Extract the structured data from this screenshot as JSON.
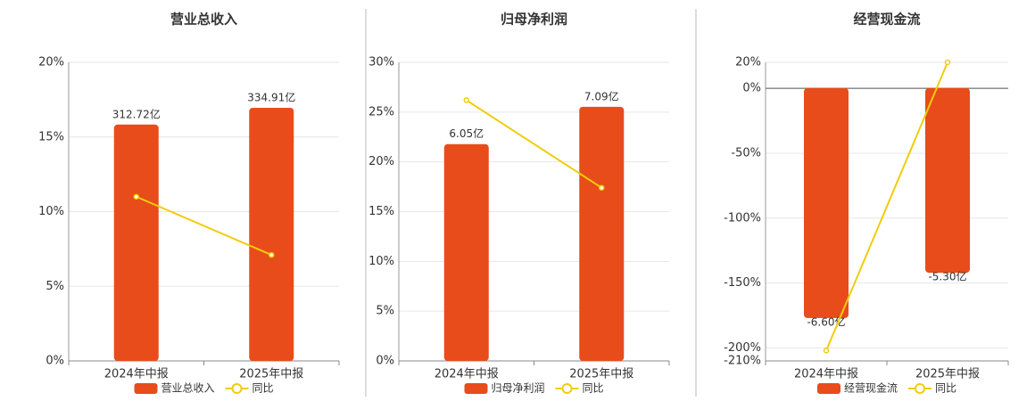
{
  "chart_data": [
    {
      "type": "bar",
      "title": "营业总收入",
      "categories": [
        "2024年中报",
        "2025年中报"
      ],
      "series": [
        {
          "name": "营业总收入",
          "color": "#e84c1a",
          "axis": "y2",
          "values": [
            312.72,
            334.91
          ],
          "value_labels": [
            "312.72亿",
            "334.91亿"
          ]
        },
        {
          "name": "同比",
          "type": "line",
          "color": "#f2cc0c",
          "values": [
            11.0,
            7.1
          ]
        }
      ],
      "ylim": [
        0,
        20
      ],
      "yticks": [
        {
          "value": 0,
          "label": "0%"
        },
        {
          "value": 5,
          "label": "5%"
        },
        {
          "value": 10,
          "label": "10%"
        },
        {
          "value": 15,
          "label": "15%"
        },
        {
          "value": 20,
          "label": "20%"
        }
      ],
      "y2lim": [
        0,
        395
      ],
      "grid": true,
      "legend": "bottom"
    },
    {
      "type": "bar",
      "title": "归母净利润",
      "categories": [
        "2024年中报",
        "2025年中报"
      ],
      "series": [
        {
          "name": "归母净利润",
          "color": "#e84c1a",
          "axis": "y2",
          "values": [
            6.05,
            7.09
          ],
          "value_labels": [
            "6.05亿",
            "7.09亿"
          ]
        },
        {
          "name": "同比",
          "type": "line",
          "color": "#f2cc0c",
          "values": [
            26.2,
            17.4
          ]
        }
      ],
      "ylim": [
        0,
        30
      ],
      "yticks": [
        {
          "value": 0,
          "label": "0%"
        },
        {
          "value": 5,
          "label": "5%"
        },
        {
          "value": 10,
          "label": "10%"
        },
        {
          "value": 15,
          "label": "15%"
        },
        {
          "value": 20,
          "label": "20%"
        },
        {
          "value": 25,
          "label": "25%"
        },
        {
          "value": 30,
          "label": "30%"
        }
      ],
      "y2lim": [
        0,
        8.33
      ],
      "grid": true,
      "legend": "bottom"
    },
    {
      "type": "bar",
      "title": "经营现金流",
      "categories": [
        "2024年中报",
        "2025年中报"
      ],
      "series": [
        {
          "name": "经营现金流",
          "color": "#e84c1a",
          "axis": "y2",
          "values": [
            -6.6,
            -5.3
          ],
          "value_labels": [
            "-6.60亿",
            "-5.30亿"
          ]
        },
        {
          "name": "同比",
          "type": "line",
          "color": "#f2cc0c",
          "values": [
            -202,
            20
          ]
        }
      ],
      "ylim": [
        -210,
        20
      ],
      "yticks": [
        {
          "value": -210,
          "label": "-210%"
        },
        {
          "value": -200,
          "label": "-200%"
        },
        {
          "value": -150,
          "label": "-150%"
        },
        {
          "value": -100,
          "label": "-100%"
        },
        {
          "value": -50,
          "label": "-50%"
        },
        {
          "value": 0,
          "label": "0%"
        },
        {
          "value": 20,
          "label": "20%"
        }
      ],
      "y2lim": [
        -7.83,
        0.74
      ],
      "grid": true,
      "legend": "bottom"
    }
  ]
}
